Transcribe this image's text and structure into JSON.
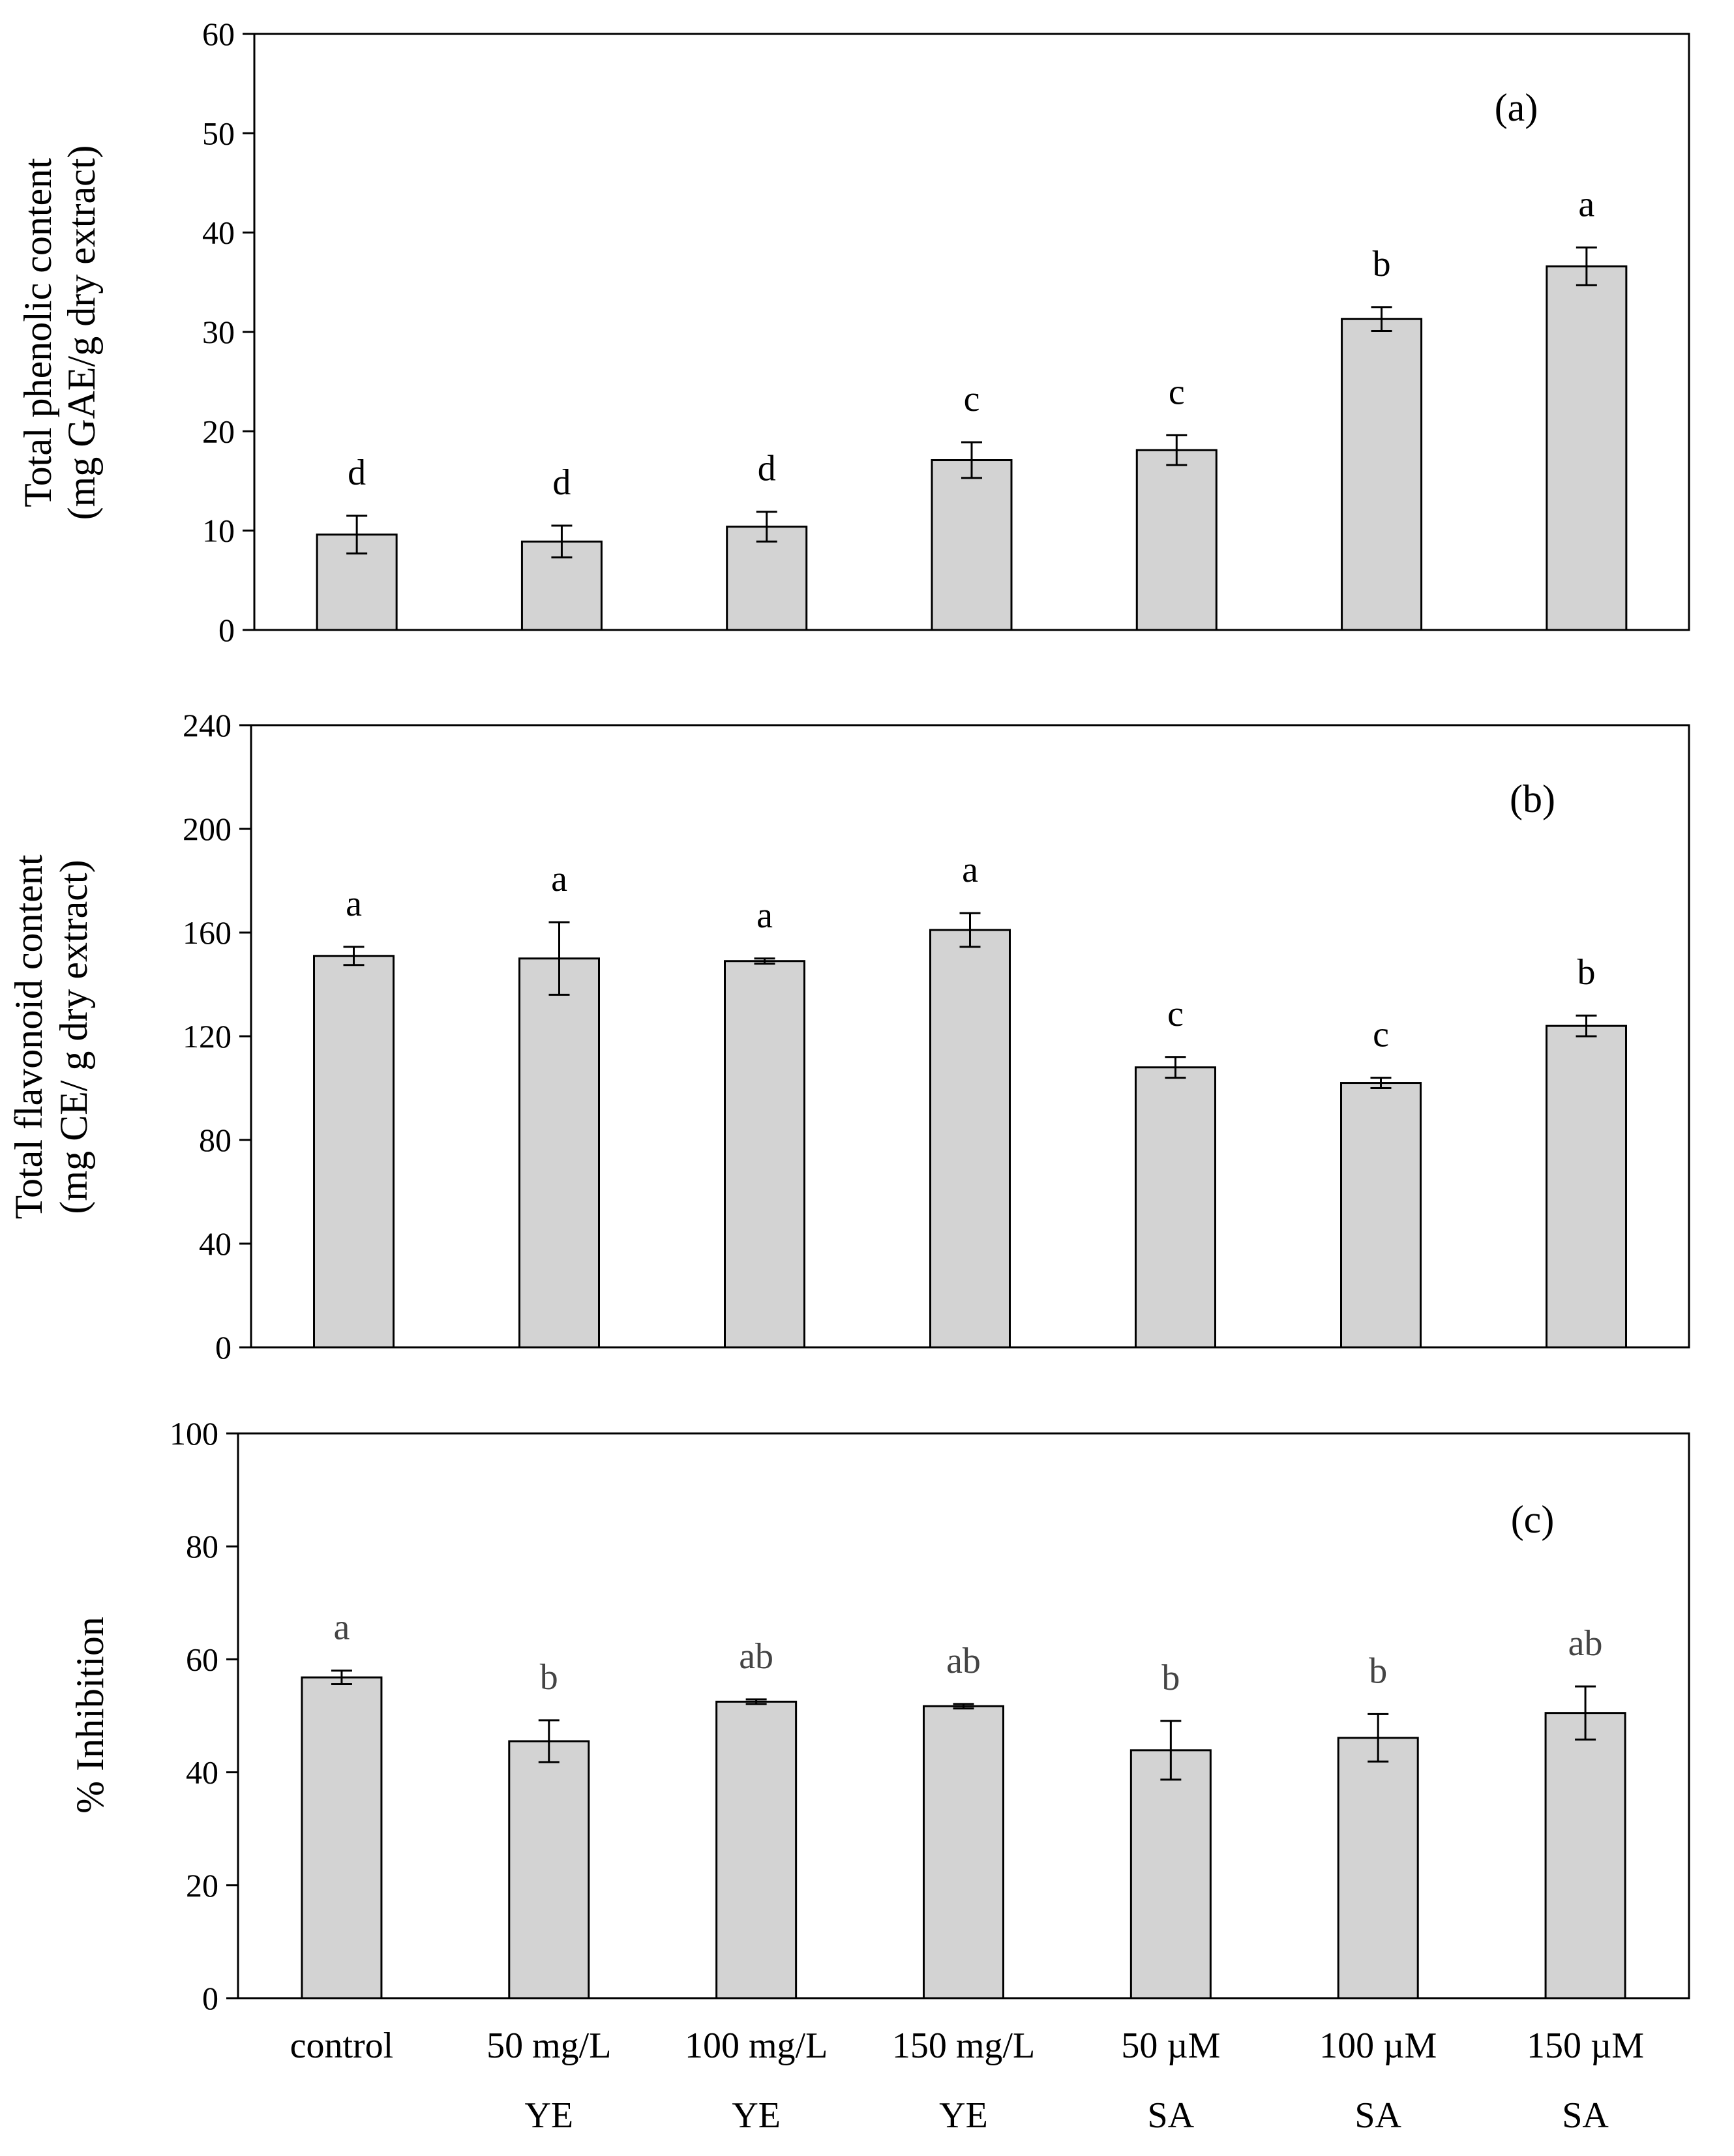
{
  "figure": {
    "bar_fill": "#d3d3d3",
    "bar_stroke": "#000000",
    "sig_letter_color_c": "#444444"
  },
  "categories_line1": [
    "control",
    "50 mg/L",
    "100 mg/L",
    "150 mg/L",
    "50 µM",
    "100 µM",
    "150 µM"
  ],
  "categories_line2": [
    "",
    "YE",
    "YE",
    "YE",
    "SA",
    "SA",
    "SA"
  ],
  "chart_data": [
    {
      "type": "bar",
      "panel_label": "(a)",
      "ylabel_line1": "Total phenolic content",
      "ylabel_line2": "(mg GAE/g dry extract)",
      "xlabel": "",
      "ylim": [
        0,
        60
      ],
      "yticks": [
        0,
        10,
        20,
        30,
        40,
        50,
        60
      ],
      "categories": [
        "control",
        "50 mg/L YE",
        "100 mg/L YE",
        "150 mg/L YE",
        "50 µM SA",
        "100 µM SA",
        "150 µM SA"
      ],
      "values": [
        9.6,
        8.9,
        10.4,
        17.1,
        18.1,
        31.3,
        36.6
      ],
      "errors": [
        1.9,
        1.6,
        1.5,
        1.8,
        1.5,
        1.2,
        1.9
      ],
      "letters": [
        "d",
        "d",
        "d",
        "c",
        "c",
        "b",
        "a"
      ]
    },
    {
      "type": "bar",
      "panel_label": "(b)",
      "ylabel_line1": "Total flavonoid content",
      "ylabel_line2": "(mg CE/ g dry extract)",
      "xlabel": "",
      "ylim": [
        0,
        240
      ],
      "yticks": [
        0,
        40,
        80,
        120,
        160,
        200,
        240
      ],
      "categories": [
        "control",
        "50 mg/L YE",
        "100 mg/L YE",
        "150 mg/L YE",
        "50 µM SA",
        "100 µM SA",
        "150 µM SA"
      ],
      "values": [
        151,
        150,
        149,
        161,
        108,
        102,
        124
      ],
      "errors": [
        3.5,
        14,
        1,
        6.5,
        4,
        2,
        4
      ],
      "letters": [
        "a",
        "a",
        "a",
        "a",
        "c",
        "c",
        "b"
      ]
    },
    {
      "type": "bar",
      "panel_label": "(c)",
      "ylabel_line1": "% Inhibition",
      "ylabel_line2": "",
      "xlabel": "",
      "ylim": [
        0,
        100
      ],
      "yticks": [
        0,
        20,
        40,
        60,
        80,
        100
      ],
      "categories": [
        "control",
        "50 mg/L YE",
        "100 mg/L YE",
        "150 mg/L YE",
        "50 µM SA",
        "100 µM SA",
        "150 µM SA"
      ],
      "values": [
        56.8,
        45.5,
        52.5,
        51.7,
        43.9,
        46.1,
        50.5
      ],
      "errors": [
        1.2,
        3.7,
        0.4,
        0.4,
        5.2,
        4.2,
        4.7
      ],
      "letters": [
        "a",
        "b",
        "ab",
        "ab",
        "b",
        "b",
        "ab"
      ]
    }
  ]
}
